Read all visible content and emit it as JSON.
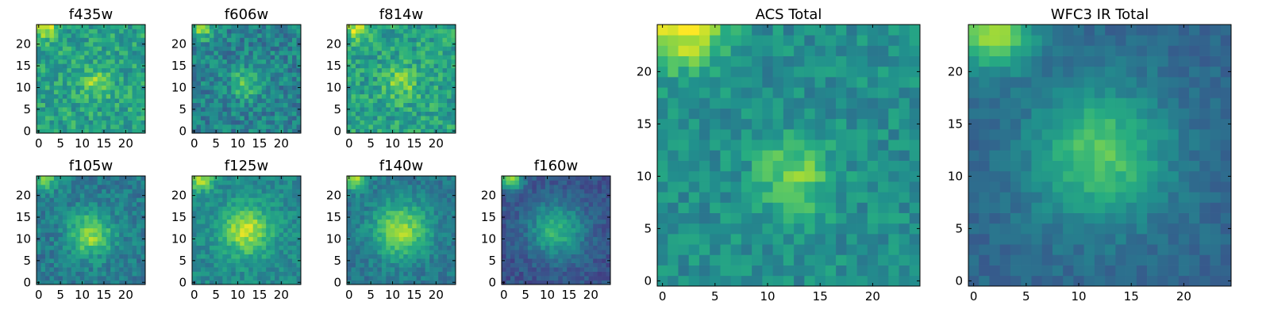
{
  "figure": {
    "background": "#ffffff"
  },
  "chart_data": [
    {
      "id": "f435w",
      "type": "heatmap",
      "title": "f435w",
      "colormap": "viridis",
      "xlim": [
        0,
        25
      ],
      "ylim": [
        0,
        25
      ],
      "xticks": [
        0,
        5,
        10,
        15,
        20
      ],
      "yticks": [
        0,
        5,
        10,
        15,
        20
      ],
      "bright_peak": {
        "x": 13,
        "y": 11,
        "strength": 0.22,
        "width": 2.5
      },
      "corner_glow": {
        "x": 1.5,
        "y": 24,
        "strength": 0.35,
        "width": 2.0
      },
      "background_level": 0.58,
      "noise": 0.3,
      "seed": 11
    },
    {
      "id": "f606w",
      "type": "heatmap",
      "title": "f606w",
      "colormap": "viridis",
      "xlim": [
        0,
        25
      ],
      "ylim": [
        0,
        25
      ],
      "xticks": [
        0,
        5,
        10,
        15,
        20
      ],
      "yticks": [
        0,
        5,
        10,
        15,
        20
      ],
      "bright_peak": {
        "x": 12,
        "y": 11,
        "strength": 0.28,
        "width": 2.5
      },
      "corner_glow": {
        "x": 1.5,
        "y": 24,
        "strength": 0.4,
        "width": 2.0
      },
      "background_level": 0.45,
      "noise": 0.3,
      "seed": 23
    },
    {
      "id": "f814w",
      "type": "heatmap",
      "title": "f814w",
      "colormap": "viridis",
      "xlim": [
        0,
        25
      ],
      "ylim": [
        0,
        25
      ],
      "xticks": [
        0,
        5,
        10,
        15,
        20
      ],
      "yticks": [
        0,
        5,
        10,
        15,
        20
      ],
      "bright_peak": {
        "x": 12,
        "y": 11,
        "strength": 0.25,
        "width": 2.5
      },
      "corner_glow": {
        "x": 1.5,
        "y": 24,
        "strength": 0.35,
        "width": 2.0
      },
      "background_level": 0.58,
      "noise": 0.3,
      "seed": 37
    },
    {
      "id": "f105w",
      "type": "heatmap",
      "title": "f105w",
      "colormap": "viridis",
      "xlim": [
        0,
        25
      ],
      "ylim": [
        0,
        25
      ],
      "xticks": [
        0,
        5,
        10,
        15,
        20
      ],
      "yticks": [
        0,
        5,
        10,
        15,
        20
      ],
      "bright_peak": {
        "x": 12,
        "y": 11,
        "strength": 0.42,
        "width": 3.5
      },
      "corner_glow": {
        "x": 1.5,
        "y": 24,
        "strength": 0.35,
        "width": 2.0
      },
      "background_level": 0.42,
      "noise": 0.22,
      "seed": 41
    },
    {
      "id": "f125w",
      "type": "heatmap",
      "title": "f125w",
      "colormap": "viridis",
      "xlim": [
        0,
        25
      ],
      "ylim": [
        0,
        25
      ],
      "xticks": [
        0,
        5,
        10,
        15,
        20
      ],
      "yticks": [
        0,
        5,
        10,
        15,
        20
      ],
      "bright_peak": {
        "x": 12,
        "y": 12,
        "strength": 0.42,
        "width": 4.0
      },
      "corner_glow": {
        "x": 1.5,
        "y": 24,
        "strength": 0.4,
        "width": 2.0
      },
      "background_level": 0.48,
      "noise": 0.2,
      "seed": 53
    },
    {
      "id": "f140w",
      "type": "heatmap",
      "title": "f140w",
      "colormap": "viridis",
      "xlim": [
        0,
        25
      ],
      "ylim": [
        0,
        25
      ],
      "xticks": [
        0,
        5,
        10,
        15,
        20
      ],
      "yticks": [
        0,
        5,
        10,
        15,
        20
      ],
      "bright_peak": {
        "x": 12,
        "y": 12,
        "strength": 0.45,
        "width": 4.5
      },
      "corner_glow": {
        "x": 1.5,
        "y": 24,
        "strength": 0.45,
        "width": 2.0
      },
      "background_level": 0.4,
      "noise": 0.18,
      "seed": 67
    },
    {
      "id": "f160w",
      "type": "heatmap",
      "title": "f160w",
      "colormap": "viridis",
      "xlim": [
        0,
        25
      ],
      "ylim": [
        0,
        25
      ],
      "xticks": [
        0,
        5,
        10,
        15,
        20
      ],
      "yticks": [
        0,
        5,
        10,
        15,
        20
      ],
      "bright_peak": {
        "x": 12,
        "y": 12,
        "strength": 0.4,
        "width": 4.5
      },
      "corner_glow": {
        "x": 1.5,
        "y": 24,
        "strength": 0.55,
        "width": 2.0
      },
      "background_level": 0.26,
      "noise": 0.16,
      "seed": 79
    },
    {
      "id": "acs-total",
      "type": "heatmap",
      "title": "ACS Total",
      "colormap": "viridis",
      "xlim": [
        0,
        25
      ],
      "ylim": [
        0,
        25
      ],
      "xticks": [
        0,
        5,
        10,
        15,
        20
      ],
      "yticks": [
        0,
        5,
        10,
        15,
        20
      ],
      "bright_peak": {
        "x": 12.5,
        "y": 10,
        "strength": 0.3,
        "width": 2.5
      },
      "corner_glow": {
        "x": 2,
        "y": 24,
        "strength": 0.5,
        "width": 2.5
      },
      "background_level": 0.5,
      "noise": 0.22,
      "seed": 97
    },
    {
      "id": "wfc3-ir-total",
      "type": "heatmap",
      "title": "WFC3 IR Total",
      "colormap": "viridis",
      "xlim": [
        0,
        25
      ],
      "ylim": [
        0,
        25
      ],
      "xticks": [
        0,
        5,
        10,
        15,
        20
      ],
      "yticks": [
        0,
        5,
        10,
        15,
        20
      ],
      "bright_peak": {
        "x": 12,
        "y": 12,
        "strength": 0.4,
        "width": 4.5
      },
      "corner_glow": {
        "x": 2,
        "y": 24,
        "strength": 0.55,
        "width": 2.5
      },
      "background_level": 0.34,
      "noise": 0.12,
      "seed": 131
    }
  ]
}
